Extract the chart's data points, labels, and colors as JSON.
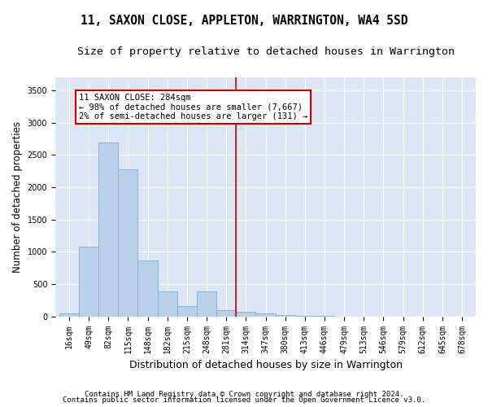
{
  "title": "11, SAXON CLOSE, APPLETON, WARRINGTON, WA4 5SD",
  "subtitle": "Size of property relative to detached houses in Warrington",
  "xlabel": "Distribution of detached houses by size in Warrington",
  "ylabel": "Number of detached properties",
  "property_label": "11 SAXON CLOSE: 284sqm",
  "annotation_line1": "← 98% of detached houses are smaller (7,667)",
  "annotation_line2": "2% of semi-detached houses are larger (131) →",
  "footer1": "Contains HM Land Registry data © Crown copyright and database right 2024.",
  "footer2": "Contains public sector information licensed under the Open Government Licence v3.0.",
  "bar_color": "#b8d0e8",
  "bar_edge_color": "#7aadd4",
  "vline_color": "#cc0000",
  "background_color": "#dce6f5",
  "grid_color": "#ffffff",
  "annotation_box_color": "#cc0000",
  "categories": [
    "16sqm",
    "49sqm",
    "82sqm",
    "115sqm",
    "148sqm",
    "182sqm",
    "215sqm",
    "248sqm",
    "281sqm",
    "314sqm",
    "347sqm",
    "380sqm",
    "413sqm",
    "446sqm",
    "479sqm",
    "513sqm",
    "546sqm",
    "579sqm",
    "612sqm",
    "645sqm",
    "678sqm"
  ],
  "values": [
    50,
    1080,
    2700,
    2280,
    870,
    390,
    160,
    390,
    100,
    75,
    50,
    25,
    15,
    5,
    0,
    0,
    0,
    0,
    0,
    0,
    0
  ],
  "ylim": [
    0,
    3700
  ],
  "yticks": [
    0,
    500,
    1000,
    1500,
    2000,
    2500,
    3000,
    3500
  ],
  "vline_x_index": 8.5,
  "title_fontsize": 10.5,
  "subtitle_fontsize": 9.5,
  "ylabel_fontsize": 8.5,
  "xlabel_fontsize": 9,
  "tick_fontsize": 7,
  "footer_fontsize": 6.5,
  "annot_fontsize": 7.5
}
